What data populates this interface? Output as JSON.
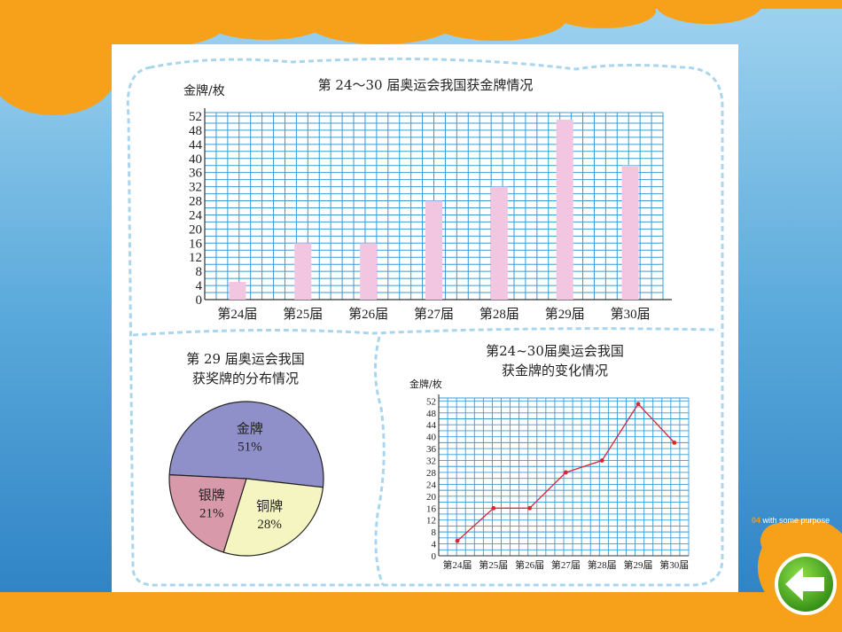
{
  "colors": {
    "orange": "#f7a11a",
    "sky_top": "#7fc0e3",
    "sky_bottom": "#2f86c7",
    "grid_blue": "#3a9bd3",
    "bar_pink": "#f2c6e0",
    "line_red": "#d62839",
    "pie_gold": "#8f8fc9",
    "pie_silver": "#d89aaa",
    "pie_bronze": "#f4f5c0",
    "dash_blue": "#a9d6ee"
  },
  "brand": {
    "number": "04",
    "text": "with some purpose"
  },
  "icons": {
    "back": "back-arrow-icon"
  },
  "chart_data": [
    {
      "type": "bar",
      "title": "第 24～30 届奥运会我国获金牌情况",
      "ylabel": "金牌/枚",
      "categories": [
        "第24届",
        "第25届",
        "第26届",
        "第27届",
        "第28届",
        "第29届",
        "第30届"
      ],
      "values": [
        5,
        16,
        16,
        28,
        32,
        51,
        38
      ],
      "yticks": [
        0,
        4,
        8,
        12,
        16,
        20,
        24,
        28,
        32,
        36,
        40,
        44,
        48,
        52
      ],
      "ylim": [
        0,
        53
      ],
      "grid": true
    },
    {
      "type": "pie",
      "title_lines": [
        "第 29 届奥运会我国",
        "获奖牌的分布情况"
      ],
      "slices": [
        {
          "label": "金牌",
          "percent": 51,
          "display": "51%"
        },
        {
          "label": "铜牌",
          "percent": 28,
          "display": "28%"
        },
        {
          "label": "银牌",
          "percent": 21,
          "display": "21%"
        }
      ]
    },
    {
      "type": "line",
      "title_lines": [
        "第24~30届奥运会我国",
        "获金牌的变化情况"
      ],
      "ylabel": "金牌/枚",
      "categories": [
        "第24届",
        "第25届",
        "第26届",
        "第27届",
        "第28届",
        "第29届",
        "第30届"
      ],
      "values": [
        5,
        16,
        16,
        28,
        32,
        51,
        38
      ],
      "yticks": [
        0,
        4,
        8,
        12,
        16,
        20,
        24,
        28,
        32,
        36,
        40,
        44,
        48,
        52
      ],
      "ylim": [
        0,
        53
      ],
      "grid": true
    }
  ]
}
